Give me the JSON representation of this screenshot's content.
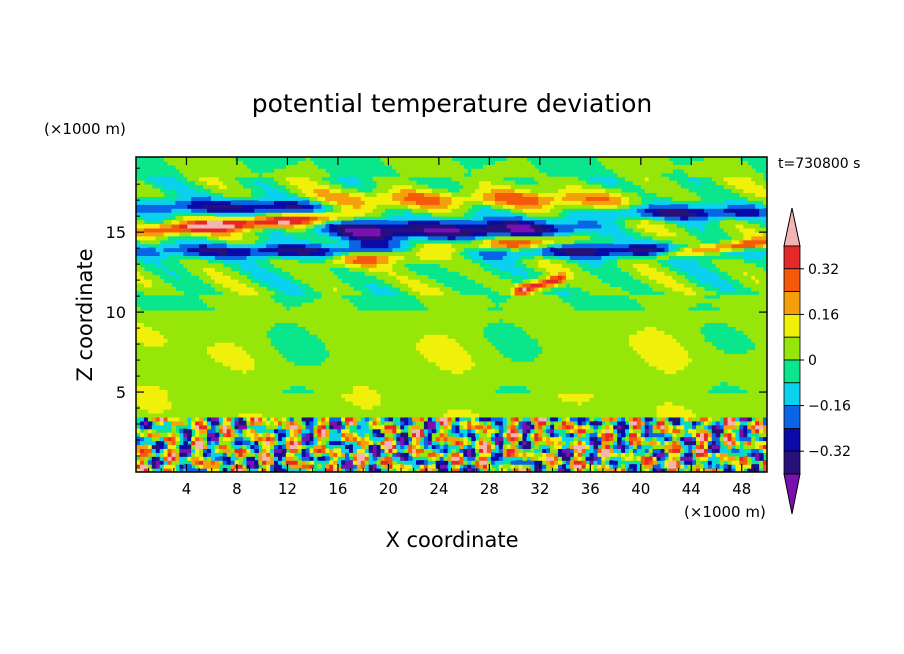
{
  "chart_data": {
    "type": "heatmap",
    "title": "potential temperature deviation",
    "xlabel": "X coordinate",
    "ylabel": "Z coordinate",
    "x_unit": "(×1000 m)",
    "y_unit": "(×1000 m)",
    "time_label": "t=730800 s",
    "x_ticks": [
      "4",
      "8",
      "12",
      "16",
      "20",
      "24",
      "28",
      "32",
      "36",
      "40",
      "44",
      "48"
    ],
    "y_ticks": [
      "5",
      "10",
      "15"
    ],
    "xlim": [
      0,
      50
    ],
    "ylim": [
      0,
      19.7
    ],
    "colorbar": {
      "labels": [
        "0.32",
        "0.16",
        "0",
        "−0.16",
        "−0.32"
      ],
      "label_values": [
        0.32,
        0.16,
        0,
        -0.16,
        -0.32
      ],
      "levels": [
        -0.4,
        -0.32,
        -0.24,
        -0.16,
        -0.08,
        0,
        0.08,
        0.16,
        0.24,
        0.32,
        0.4
      ],
      "colors": [
        "#7a10b0",
        "#28107a",
        "#0a0aa8",
        "#0a64e6",
        "#0ad2ee",
        "#0ae68c",
        "#96e60a",
        "#f0f00a",
        "#f5a00a",
        "#f55a0a",
        "#e62828",
        "#f5b4b4"
      ],
      "extend": "both"
    },
    "fields": {
      "surface_layer_top": 3.4,
      "jet_band": {
        "z_center": 14.8,
        "z_halfwidth": 2.6
      },
      "features": [
        {
          "kind": "positive_streak",
          "x_start": 0,
          "x_end": 17,
          "z_start": 14.4,
          "z_end": 16.6,
          "value": 0.42
        },
        {
          "kind": "positive_streak",
          "x_start": 16,
          "x_end": 35,
          "z_start": 12.5,
          "z_end": 15.3,
          "value": 0.42
        },
        {
          "kind": "positive_streak",
          "x_start": 30,
          "x_end": 34,
          "z_start": 10.8,
          "z_end": 12.6,
          "value": 0.42
        },
        {
          "kind": "positive_streak",
          "x_start": 41,
          "x_end": 50,
          "z_start": 13.0,
          "z_end": 14.8,
          "value": 0.42
        },
        {
          "kind": "negative_band",
          "x_start": 0,
          "x_end": 50,
          "z_start": 13.3,
          "z_end": 14.4,
          "value": -0.34
        },
        {
          "kind": "negative_band",
          "x_start": 14,
          "x_end": 36,
          "z_start": 14.3,
          "z_end": 16.0,
          "value": -0.4
        },
        {
          "kind": "negative_band",
          "x_start": 0,
          "x_end": 16,
          "z_start": 16.0,
          "z_end": 17.2,
          "value": -0.3
        },
        {
          "kind": "negative_band",
          "x_start": 37,
          "x_end": 50,
          "z_start": 15.7,
          "z_end": 16.8,
          "value": -0.3
        },
        {
          "kind": "positive_band",
          "x_start": 14,
          "x_end": 40,
          "z_start": 16.4,
          "z_end": 17.8,
          "value": 0.22
        }
      ]
    }
  }
}
